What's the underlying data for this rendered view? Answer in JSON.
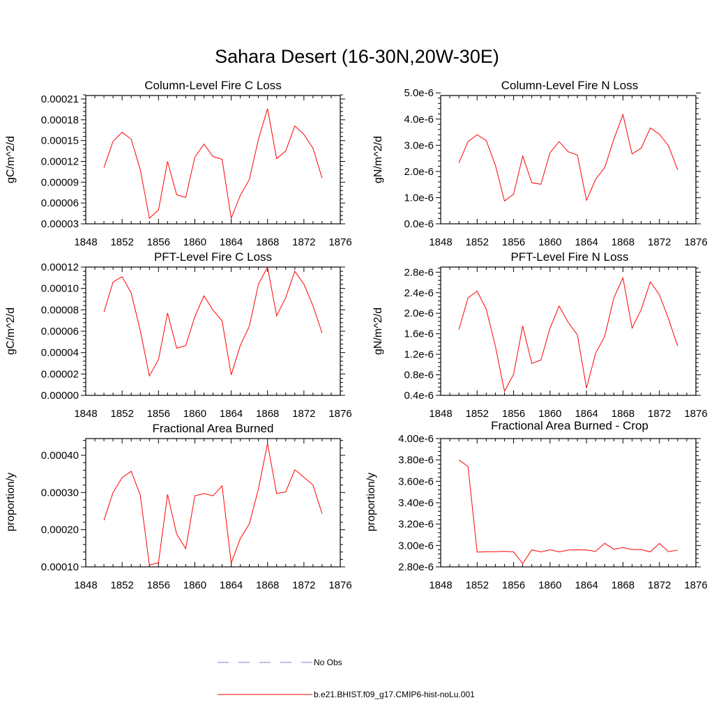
{
  "title": "Sahara Desert (16-30N,20W-30E)",
  "colors": {
    "model": "#ff0000",
    "obs": "#8080c0",
    "axis": "#000000"
  },
  "legend": [
    {
      "label": "No Obs",
      "style": "dashed",
      "color": "#8080c0"
    },
    {
      "label": "b.e21.BHIST.f09_g17.CMIP6-hist-noLu.001",
      "style": "solid",
      "color": "#ff0000"
    }
  ],
  "chart_data": [
    {
      "type": "line",
      "title": "Column-Level Fire C Loss",
      "ylabel": "gC/m^2/d",
      "xlim": [
        1848,
        1876
      ],
      "xticks": [
        1848,
        1852,
        1856,
        1860,
        1864,
        1868,
        1872,
        1876
      ],
      "xtick_labels": [
        "1848",
        "1852",
        "1856",
        "1860",
        "1864",
        "1868",
        "1872",
        "1876"
      ],
      "ylim": [
        3e-05,
        0.000215
      ],
      "yticks": [
        3e-05,
        6e-05,
        9e-05,
        0.00012,
        0.00015,
        0.00018,
        0.00021
      ],
      "ytick_labels": [
        "0.00003",
        "0.00006",
        "0.00009",
        "0.00012",
        "0.00015",
        "0.00018",
        "0.00021"
      ],
      "series": [
        {
          "name": "b.e21.BHIST.f09_g17.CMIP6-hist-noLu.001",
          "color": "#ff0000",
          "x": [
            1850,
            1851,
            1852,
            1853,
            1854,
            1855,
            1856,
            1857,
            1858,
            1859,
            1860,
            1861,
            1862,
            1863,
            1864,
            1865,
            1866,
            1867,
            1868,
            1869,
            1870,
            1871,
            1872,
            1873,
            1874
          ],
          "y": [
            0.000111,
            0.000149,
            0.000162,
            0.000152,
            0.000108,
            3.8e-05,
            5e-05,
            0.00012,
            7.2e-05,
            6.8e-05,
            0.000126,
            0.000145,
            0.000127,
            0.000123,
            3.8e-05,
            7.1e-05,
            9.4e-05,
            0.000152,
            0.000196,
            0.000124,
            0.000135,
            0.000171,
            0.000159,
            0.000139,
            9.6e-05
          ]
        }
      ]
    },
    {
      "type": "line",
      "title": "Column-Level Fire N Loss",
      "ylabel": "gN/m^2/d",
      "xlim": [
        1848,
        1876
      ],
      "xticks": [
        1848,
        1852,
        1856,
        1860,
        1864,
        1868,
        1872,
        1876
      ],
      "xtick_labels": [
        "1848",
        "1852",
        "1856",
        "1860",
        "1864",
        "1868",
        "1872",
        "1876"
      ],
      "ylim": [
        0,
        4.9e-06
      ],
      "yticks": [
        0,
        1e-06,
        2e-06,
        3e-06,
        4e-06,
        5e-06
      ],
      "ytick_labels": [
        "0.0e-6",
        "1.0e-6",
        "2.0e-6",
        "3.0e-6",
        "4.0e-6",
        "5.0e-6"
      ],
      "series": [
        {
          "name": "b.e21.BHIST.f09_g17.CMIP6-hist-noLu.001",
          "color": "#ff0000",
          "x": [
            1850,
            1851,
            1852,
            1853,
            1854,
            1855,
            1856,
            1857,
            1858,
            1859,
            1860,
            1861,
            1862,
            1863,
            1864,
            1865,
            1866,
            1867,
            1868,
            1869,
            1870,
            1871,
            1872,
            1873,
            1874
          ],
          "y": [
            2.33e-06,
            3.14e-06,
            3.4e-06,
            3.18e-06,
            2.24e-06,
            8.7e-07,
            1.13e-06,
            2.59e-06,
            1.57e-06,
            1.51e-06,
            2.72e-06,
            3.14e-06,
            2.75e-06,
            2.63e-06,
            9e-07,
            1.7e-06,
            2.15e-06,
            3.23e-06,
            4.17e-06,
            2.67e-06,
            2.89e-06,
            3.66e-06,
            3.42e-06,
            2.98e-06,
            2.06e-06
          ]
        }
      ]
    },
    {
      "type": "line",
      "title": "PFT-Level Fire C Loss",
      "ylabel": "gC/m^2/d",
      "xlim": [
        1848,
        1876
      ],
      "xticks": [
        1848,
        1852,
        1856,
        1860,
        1864,
        1868,
        1872,
        1876
      ],
      "xtick_labels": [
        "1848",
        "1852",
        "1856",
        "1860",
        "1864",
        "1868",
        "1872",
        "1876"
      ],
      "ylim": [
        0,
        0.00012
      ],
      "yticks": [
        0,
        2e-05,
        4e-05,
        6e-05,
        8e-05,
        0.0001,
        0.00012
      ],
      "ytick_labels": [
        "0.00000",
        "0.00002",
        "0.00004",
        "0.00006",
        "0.00008",
        "0.00010",
        "0.00012"
      ],
      "series": [
        {
          "name": "b.e21.BHIST.f09_g17.CMIP6-hist-noLu.001",
          "color": "#ff0000",
          "x": [
            1850,
            1851,
            1852,
            1853,
            1854,
            1855,
            1856,
            1857,
            1858,
            1859,
            1860,
            1861,
            1862,
            1863,
            1864,
            1865,
            1866,
            1867,
            1868,
            1869,
            1870,
            1871,
            1872,
            1873,
            1874
          ],
          "y": [
            7.78e-05,
            0.000106,
            0.000111,
            9.58e-05,
            6.05e-05,
            1.82e-05,
            3.35e-05,
            7.7e-05,
            4.41e-05,
            4.66e-05,
            7.36e-05,
            9.31e-05,
            7.97e-05,
            6.97e-05,
            1.91e-05,
            4.66e-05,
            6.47e-05,
            0.000104,
            0.00012,
            7.44e-05,
            9.15e-05,
            0.000116,
            0.000104,
            8.37e-05,
            5.83e-05
          ]
        }
      ]
    },
    {
      "type": "line",
      "title": "PFT-Level Fire N Loss",
      "ylabel": "gN/m^2/d",
      "xlim": [
        1848,
        1876
      ],
      "xticks": [
        1848,
        1852,
        1856,
        1860,
        1864,
        1868,
        1872,
        1876
      ],
      "xtick_labels": [
        "1848",
        "1852",
        "1856",
        "1860",
        "1864",
        "1868",
        "1872",
        "1876"
      ],
      "ylim": [
        4e-07,
        2.9e-06
      ],
      "yticks": [
        4e-07,
        8e-07,
        1.2e-06,
        1.6e-06,
        2e-06,
        2.4e-06,
        2.8e-06
      ],
      "ytick_labels": [
        "0.4e-6",
        "0.8e-6",
        "1.2e-6",
        "1.6e-6",
        "2.0e-6",
        "2.4e-6",
        "2.8e-6"
      ],
      "series": [
        {
          "name": "b.e21.BHIST.f09_g17.CMIP6-hist-noLu.001",
          "color": "#ff0000",
          "x": [
            1850,
            1851,
            1852,
            1853,
            1854,
            1855,
            1856,
            1857,
            1858,
            1859,
            1860,
            1861,
            1862,
            1863,
            1864,
            1865,
            1866,
            1867,
            1868,
            1869,
            1870,
            1871,
            1872,
            1873,
            1874
          ],
          "y": [
            1.68e-06,
            2.3e-06,
            2.43e-06,
            2.08e-06,
            1.36e-06,
            4.8e-07,
            8.1e-07,
            1.75e-06,
            1.02e-06,
            1.09e-06,
            1.71e-06,
            2.14e-06,
            1.82e-06,
            1.58e-06,
            5.4e-07,
            1.22e-06,
            1.55e-06,
            2.3e-06,
            2.69e-06,
            1.71e-06,
            2.07e-06,
            2.61e-06,
            2.36e-06,
            1.89e-06,
            1.36e-06
          ]
        }
      ]
    },
    {
      "type": "line",
      "title": "Fractional Area Burned",
      "ylabel": "proportion/y",
      "xlim": [
        1848,
        1876
      ],
      "xticks": [
        1848,
        1852,
        1856,
        1860,
        1864,
        1868,
        1872,
        1876
      ],
      "xtick_labels": [
        "1848",
        "1852",
        "1856",
        "1860",
        "1864",
        "1868",
        "1872",
        "1876"
      ],
      "ylim": [
        0.0001,
        0.000445
      ],
      "yticks": [
        0.0001,
        0.0002,
        0.0003,
        0.0004
      ],
      "ytick_labels": [
        "0.00010",
        "0.00020",
        "0.00030",
        "0.00040"
      ],
      "series": [
        {
          "name": "b.e21.BHIST.f09_g17.CMIP6-hist-noLu.001",
          "color": "#ff0000",
          "x": [
            1850,
            1851,
            1852,
            1853,
            1854,
            1855,
            1856,
            1857,
            1858,
            1859,
            1860,
            1861,
            1862,
            1863,
            1864,
            1865,
            1866,
            1867,
            1868,
            1869,
            1870,
            1871,
            1872,
            1873,
            1874
          ],
          "y": [
            0.000225,
            0.0003,
            0.00034,
            0.000357,
            0.000293,
            0.000105,
            0.000111,
            0.000295,
            0.000188,
            0.000149,
            0.000291,
            0.000297,
            0.000291,
            0.000318,
            0.00011,
            0.000176,
            0.000216,
            0.00031,
            0.000432,
            0.000297,
            0.000302,
            0.000361,
            0.000341,
            0.00032,
            0.000243
          ]
        }
      ]
    },
    {
      "type": "line",
      "title": "Fractional Area Burned - Crop",
      "ylabel": "proportion/y",
      "xlim": [
        1848,
        1876
      ],
      "xticks": [
        1848,
        1852,
        1856,
        1860,
        1864,
        1868,
        1872,
        1876
      ],
      "xtick_labels": [
        "1848",
        "1852",
        "1856",
        "1860",
        "1864",
        "1868",
        "1872",
        "1876"
      ],
      "ylim": [
        2.8e-06,
        4e-06
      ],
      "yticks": [
        2.8e-06,
        3e-06,
        3.2e-06,
        3.4e-06,
        3.6e-06,
        3.8e-06,
        4e-06
      ],
      "ytick_labels": [
        "2.80e-6",
        "3.00e-6",
        "3.20e-6",
        "3.40e-6",
        "3.60e-6",
        "3.80e-6",
        "4.00e-6"
      ],
      "series": [
        {
          "name": "b.e21.BHIST.f09_g17.CMIP6-hist-noLu.001",
          "color": "#ff0000",
          "x": [
            1850,
            1851,
            1852,
            1853,
            1854,
            1855,
            1856,
            1857,
            1858,
            1859,
            1860,
            1861,
            1862,
            1863,
            1864,
            1865,
            1866,
            1867,
            1868,
            1869,
            1870,
            1871,
            1872,
            1873,
            1874
          ],
          "y": [
            3.8e-06,
            3.74e-06,
            2.938e-06,
            2.942e-06,
            2.942e-06,
            2.945e-06,
            2.94e-06,
            2.83e-06,
            2.96e-06,
            2.94e-06,
            2.96e-06,
            2.94e-06,
            2.957e-06,
            2.96e-06,
            2.957e-06,
            2.945e-06,
            3.02e-06,
            2.965e-06,
            2.98e-06,
            2.962e-06,
            2.962e-06,
            2.94e-06,
            3.02e-06,
            2.942e-06,
            2.957e-06
          ]
        }
      ]
    }
  ]
}
